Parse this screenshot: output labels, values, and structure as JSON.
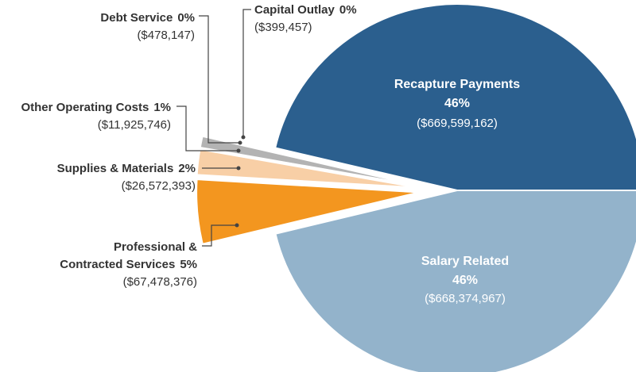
{
  "chart_data": {
    "type": "pie",
    "slices": [
      {
        "name": "Recapture Payments",
        "percent_label": "46%",
        "amount_label": "($669,599,162)",
        "value": 669599162,
        "color": "#2b5f8e"
      },
      {
        "name": "Salary Related",
        "percent_label": "46%",
        "amount_label": "($668,374,967)",
        "value": 668374967,
        "color": "#93b3cb"
      },
      {
        "name": "Professional & Contracted Services",
        "name_lines": [
          "Professional &",
          "Contracted Services"
        ],
        "percent_label": "5%",
        "amount_label": "($67,478,376)",
        "value": 67478376,
        "color": "#f3961f"
      },
      {
        "name": "Supplies & Materials",
        "percent_label": "2%",
        "amount_label": "($26,572,393)",
        "value": 26572393,
        "color": "#f8cfa6"
      },
      {
        "name": "Other Operating Costs",
        "percent_label": "1%",
        "amount_label": "($11,925,746)",
        "value": 11925746,
        "color": "#b3b3b3"
      },
      {
        "name": "Debt Service",
        "percent_label": "0%",
        "amount_label": "($478,147)",
        "value": 478147,
        "color": "#6f6f6f"
      },
      {
        "name": "Capital Outlay",
        "percent_label": "0%",
        "amount_label": "($399,457)",
        "value": 399457,
        "color": "#3c3c3c"
      }
    ]
  }
}
